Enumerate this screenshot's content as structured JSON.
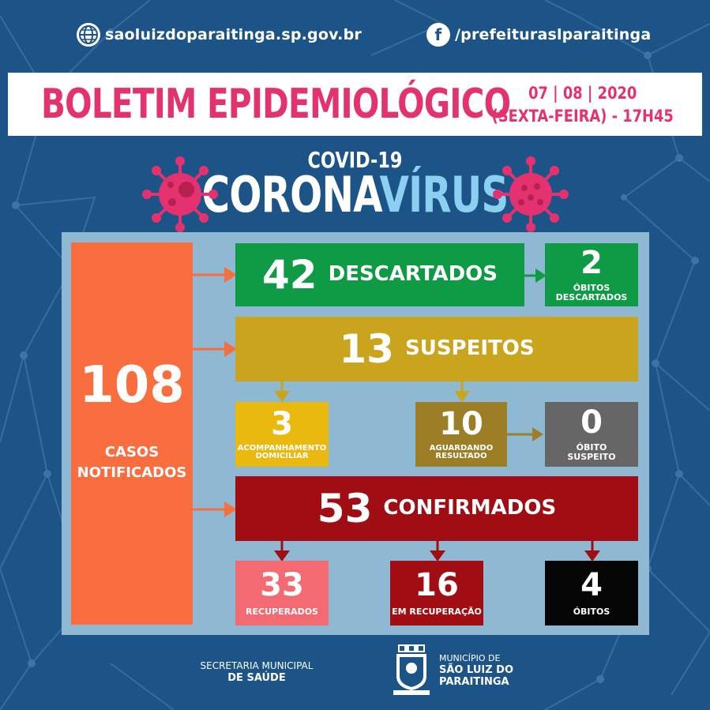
{
  "header": {
    "website": "saoluizdoparaitinga.sp.gov.br",
    "facebook": "/prefeituraslparaitinga",
    "web_icon": "globe-icon",
    "fb_icon": "facebook-icon"
  },
  "banner": {
    "title": "BOLETIM EPIDEMIOLÓGICO",
    "date": "07 | 08 | 2020",
    "day_time": "(SEXTA-FEIRA) - 17H45"
  },
  "hero": {
    "covid": "COVID-19",
    "corona": "CORONA",
    "virus": "VÍRUS"
  },
  "stats": {
    "notified": {
      "value": "108",
      "label_1": "CASOS",
      "label_2": "NOTIFICADOS"
    },
    "discarded": {
      "value": "42",
      "label": "DESCARTADOS"
    },
    "deaths_discarded": {
      "value": "2",
      "label_1": "ÓBITOS",
      "label_2": "DESCARTADOS"
    },
    "suspects": {
      "value": "13",
      "label": "SUSPEITOS"
    },
    "home_monitoring": {
      "value": "3",
      "label_1": "ACOMPANHAMENTO",
      "label_2": "DOMICILIAR"
    },
    "awaiting": {
      "value": "10",
      "label_1": "AGUARDANDO",
      "label_2": "RESULTADO"
    },
    "suspect_death": {
      "value": "0",
      "label_1": "ÓBITO",
      "label_2": "SUSPEITO"
    },
    "confirmed": {
      "value": "53",
      "label": "CONFIRMADOS"
    },
    "recovered": {
      "value": "33",
      "label": "RECUPERADOS"
    },
    "recovering": {
      "value": "16",
      "label": "EM RECUPERAÇÃO"
    },
    "deaths": {
      "value": "4",
      "label": "ÓBITOS"
    }
  },
  "colors": {
    "background": "#1d5487",
    "pink": "#e43271",
    "orange": "#f96e3f",
    "green": "#0f9a45",
    "gold": "#c9a41c",
    "yellow": "#e9b90f",
    "olive": "#9b7e26",
    "gray": "#666666",
    "darkred": "#a00e14",
    "salmon": "#f36a72",
    "black": "#050505"
  },
  "footer": {
    "secretaria_1": "SECRETARIA MUNICIPAL",
    "secretaria_2": "DE SAÚDE",
    "municipio_1": "MUNICÍPIO DE",
    "municipio_2": "SÃO LUIZ DO",
    "municipio_3": "PARAITINGA",
    "crest_icon": "municipal-crest-icon"
  }
}
